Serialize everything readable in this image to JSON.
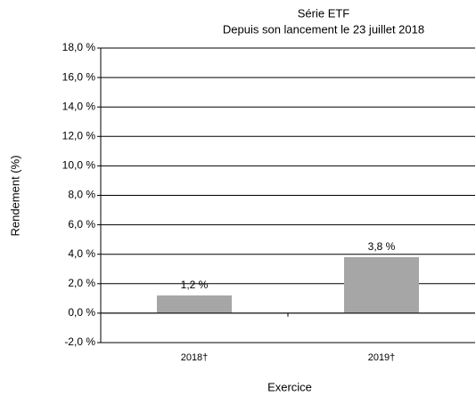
{
  "chart_data": {
    "type": "bar",
    "title": "Série ETF",
    "subtitle": "Depuis son lancement le 23 juillet 2018",
    "y_label": "Rendement (%)",
    "x_label": "Exercice",
    "categories": [
      "2018†",
      "2019†"
    ],
    "values": [
      1.2,
      3.8
    ],
    "value_labels": [
      "1,2 %",
      "3,8 %"
    ],
    "color": "#a6a6a6",
    "ylim": [
      -2,
      18
    ],
    "yticks": [
      {
        "value": -2,
        "label": "-2,0 %"
      },
      {
        "value": 0,
        "label": "0,0 %"
      },
      {
        "value": 2,
        "label": "2,0 %"
      },
      {
        "value": 4,
        "label": "4,0 %"
      },
      {
        "value": 6,
        "label": "6,0 %"
      },
      {
        "value": 8,
        "label": "8,0 %"
      },
      {
        "value": 10,
        "label": "10,0 %"
      },
      {
        "value": 12,
        "label": "12,0 %"
      },
      {
        "value": 14,
        "label": "14,0 %"
      },
      {
        "value": 16,
        "label": "16,0 %"
      },
      {
        "value": 18,
        "label": "18,0 %"
      }
    ],
    "grid": true
  }
}
